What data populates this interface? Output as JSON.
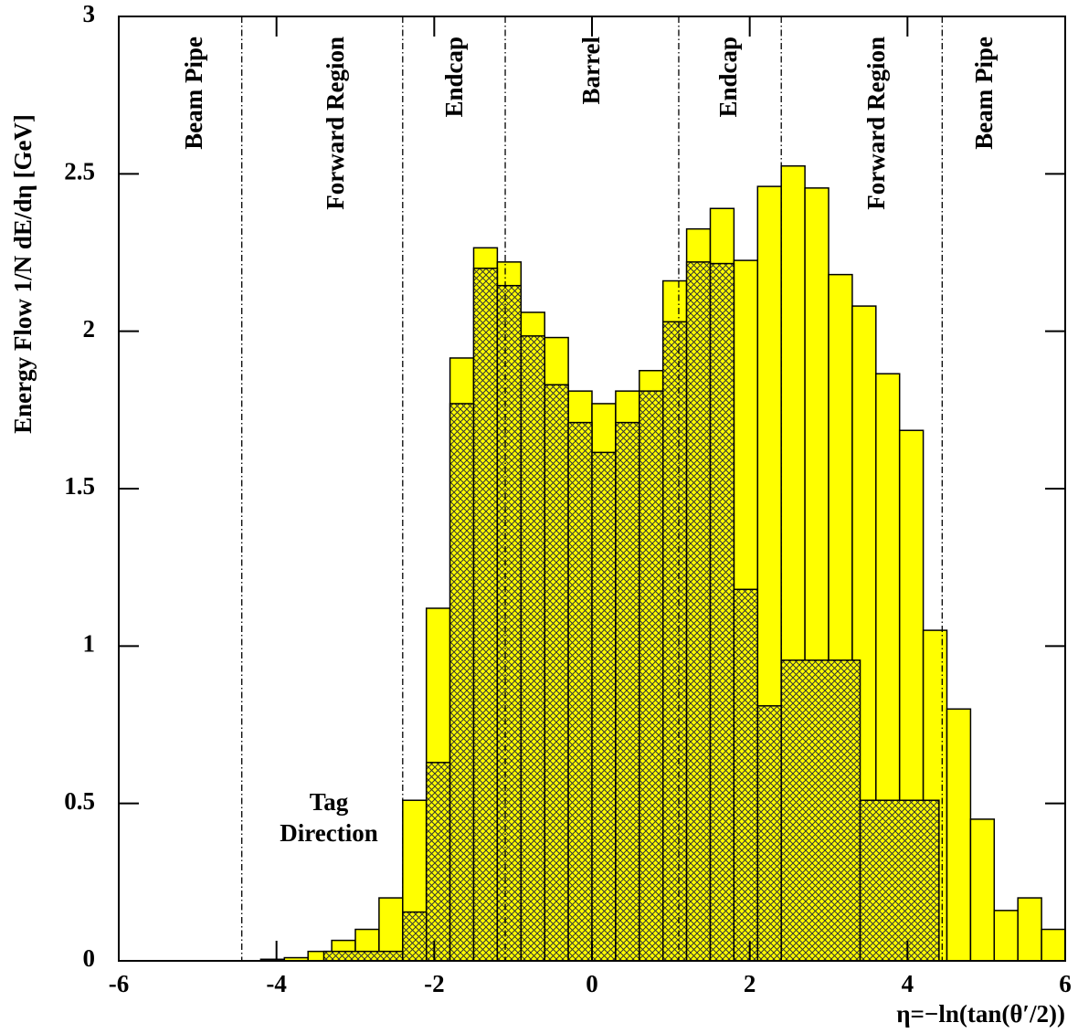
{
  "chart_data": {
    "type": "histogram",
    "xlabel": "η=−ln(tan(θ′/2))",
    "ylabel": "Energy Flow   1/N dE/dη   [GeV]",
    "xlim": [
      -6,
      6
    ],
    "ylim": [
      0,
      3
    ],
    "xticks": [
      -6,
      -4,
      -2,
      0,
      2,
      4,
      6
    ],
    "yticks": [
      0,
      0.5,
      1,
      1.5,
      2,
      2.5,
      3
    ],
    "region_lines": [
      -4.44,
      -2.4,
      -1.1,
      1.1,
      2.4,
      4.44
    ],
    "regions": [
      "Beam Pipe",
      "Forward Region",
      "Endcap",
      "Barrel",
      "Endcap",
      "Forward Region",
      "Beam Pipe"
    ],
    "annotation": [
      "Tag",
      "Direction"
    ],
    "series": [
      {
        "color": "#ffff00",
        "hatch": false,
        "bins": [
          -6,
          -5.7,
          -5.4,
          -5.1,
          -4.8,
          -4.5,
          -4.2,
          -3.9,
          -3.6,
          -3.3,
          -3,
          -2.7,
          -2.4,
          -2.1,
          -1.8,
          -1.5,
          -1.2,
          -0.9,
          -0.6,
          -0.3,
          0,
          0.3,
          0.6,
          0.9,
          1.2,
          1.5,
          1.8,
          2.1,
          2.4,
          2.7,
          3,
          3.3,
          3.6,
          3.9,
          4.2,
          4.5,
          4.8,
          5.1,
          5.4,
          5.7,
          6
        ],
        "values": [
          0,
          0,
          0,
          0,
          0,
          0,
          0.005,
          0.01,
          0.03,
          0.065,
          0.1,
          0.2,
          0.51,
          1.12,
          1.915,
          2.265,
          2.22,
          2.06,
          1.98,
          1.81,
          1.77,
          1.81,
          1.875,
          2.16,
          2.325,
          2.39,
          2.225,
          2.46,
          2.525,
          2.455,
          2.18,
          2.08,
          1.865,
          1.685,
          1.05,
          0.8,
          0.45,
          0.16,
          0.2,
          0.1
        ]
      },
      {
        "color": "#ffff00",
        "hatch": true,
        "bins": [
          -3.4,
          -2.4,
          -2.1,
          -1.8,
          -1.5,
          -1.2,
          -0.9,
          -0.6,
          -0.3,
          0,
          0.3,
          0.6,
          0.9,
          1.2,
          1.5,
          1.8,
          2.1,
          2.4,
          3.4,
          4.4
        ],
        "values": [
          0.03,
          0.155,
          0.63,
          1.77,
          2.2,
          2.145,
          1.985,
          1.83,
          1.71,
          1.615,
          1.71,
          1.81,
          2.03,
          2.22,
          2.215,
          1.18,
          0.81,
          0.955,
          0.51
        ]
      }
    ]
  }
}
